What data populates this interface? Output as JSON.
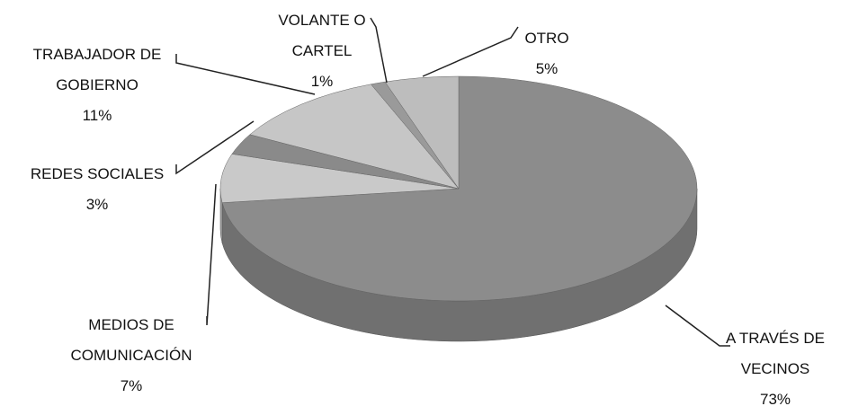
{
  "chart_data": {
    "type": "pie3d",
    "categories": [
      "A TRAVÉS DE VECINOS",
      "MEDIOS DE COMUNICACIÓN",
      "REDES SOCIALES",
      "TRABAJADOR DE GOBIERNO",
      "VOLANTE O CARTEL",
      "OTRO"
    ],
    "values": [
      73,
      7,
      3,
      11,
      1,
      5
    ],
    "value_labels": [
      "73%",
      "7%",
      "3%",
      "11%",
      "1%",
      "5%"
    ],
    "colors": [
      "#8c8c8c",
      "#c9c9c9",
      "#8a8a8a",
      "#c6c6c6",
      "#9a9a9a",
      "#bdbdbd"
    ]
  }
}
